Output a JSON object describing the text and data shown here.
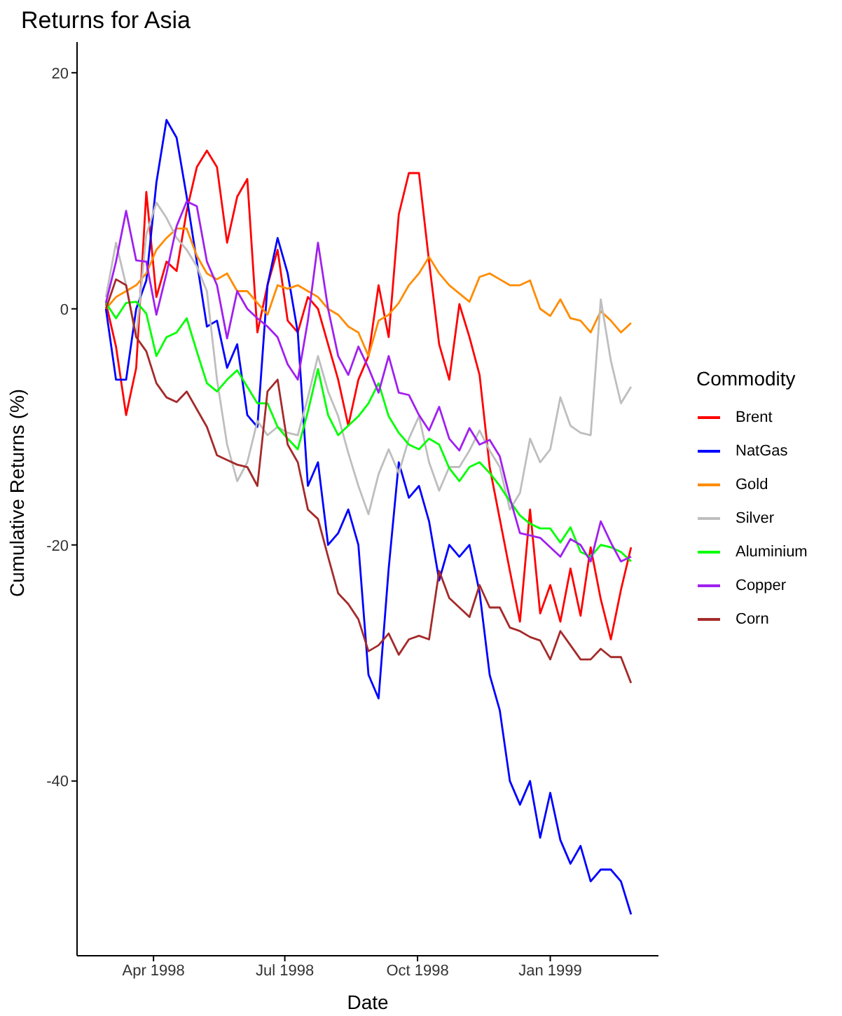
{
  "chart_data": {
    "type": "line",
    "title": "Returns for Asia",
    "xlabel": "Date",
    "ylabel": "Cumulative Returns (%)",
    "legend_title": "Commodity",
    "legend": "right",
    "grid": false,
    "x": [
      "1998-02-27",
      "1998-03-06",
      "1998-03-13",
      "1998-03-20",
      "1998-03-27",
      "1998-04-03",
      "1998-04-10",
      "1998-04-17",
      "1998-04-24",
      "1998-05-01",
      "1998-05-08",
      "1998-05-15",
      "1998-05-22",
      "1998-05-29",
      "1998-06-05",
      "1998-06-12",
      "1998-06-19",
      "1998-06-26",
      "1998-07-03",
      "1998-07-10",
      "1998-07-17",
      "1998-07-24",
      "1998-07-31",
      "1998-08-07",
      "1998-08-14",
      "1998-08-21",
      "1998-08-28",
      "1998-09-04",
      "1998-09-11",
      "1998-09-18",
      "1998-09-25",
      "1998-10-02",
      "1998-10-09",
      "1998-10-16",
      "1998-10-23",
      "1998-10-30",
      "1998-11-06",
      "1998-11-13",
      "1998-11-20",
      "1998-11-27",
      "1998-12-04",
      "1998-12-11",
      "1998-12-18",
      "1998-12-25",
      "1999-01-01",
      "1999-01-08",
      "1999-01-15",
      "1999-01-22",
      "1999-01-29",
      "1999-02-05",
      "1999-02-12",
      "1999-02-19",
      "1999-02-26"
    ],
    "xlim": [
      "1998-02-07",
      "1999-03-17"
    ],
    "xticks": [
      {
        "value": "1998-04-01",
        "label": "Apr 1998"
      },
      {
        "value": "1998-07-01",
        "label": "Jul 1998"
      },
      {
        "value": "1998-10-01",
        "label": "Oct 1998"
      },
      {
        "value": "1999-01-01",
        "label": "Jan 1999"
      }
    ],
    "ylim": [
      -54.8,
      22.6
    ],
    "yticks": [
      -40,
      -20,
      0,
      20
    ],
    "series": [
      {
        "name": "Brent",
        "color": "#ff0000",
        "values": [
          0.5,
          -3.2,
          -9,
          -5,
          9.9,
          1,
          4,
          3.2,
          8.3,
          12,
          13.4,
          12,
          5.6,
          9.5,
          11,
          -2,
          2,
          5,
          -1,
          -2,
          1,
          0,
          -3,
          -6,
          -9.9,
          -6,
          -4,
          2,
          -2.4,
          8,
          11.5,
          11.5,
          4,
          -3,
          -6,
          0.4,
          -2.4,
          -5.6,
          -13.4,
          -17.8,
          -22.2,
          -26.5,
          -17,
          -25.8,
          -23.4,
          -26.5,
          -22,
          -26,
          -20.2,
          -24.6,
          -28,
          -23.8,
          -20.2
        ]
      },
      {
        "name": "NatGas",
        "color": "#0000ff",
        "values": [
          0,
          -6,
          -6,
          0,
          2.4,
          10.7,
          16,
          14.5,
          9.5,
          4,
          -1.5,
          -1,
          -5,
          -3,
          -9,
          -10,
          2,
          6,
          3,
          -2,
          -15,
          -13,
          -20,
          -19,
          -17,
          -20,
          -31,
          -33,
          -22,
          -13,
          -16,
          -15,
          -18,
          -23,
          -20,
          -21,
          -20,
          -24,
          -31,
          -34,
          -40,
          -42,
          -40,
          -44.8,
          -41,
          -45,
          -47,
          -45.5,
          -48.5,
          -47.5,
          -47.5,
          -48.5,
          -51.3
        ]
      },
      {
        "name": "Gold",
        "color": "#ff8c00",
        "values": [
          0,
          1,
          1.5,
          2,
          3,
          5,
          6,
          6.8,
          6.8,
          4.5,
          3,
          2.5,
          3,
          1.5,
          1.5,
          0.5,
          -0.5,
          2,
          1.7,
          2,
          1.5,
          1,
          0,
          -0.5,
          -1.5,
          -2,
          -4,
          -1,
          -0.5,
          0.5,
          2,
          3,
          4.4,
          3,
          2,
          1.3,
          0.6,
          2.7,
          3,
          2.5,
          2,
          2,
          2.4,
          0,
          -0.6,
          0.8,
          -0.8,
          -1,
          -2,
          -0.2,
          -1,
          -2,
          -1.2
        ]
      },
      {
        "name": "Silver",
        "color": "#bebebe",
        "values": [
          1,
          5.6,
          2,
          -2.4,
          6.3,
          9,
          7.7,
          6,
          5,
          3.6,
          1.5,
          -6,
          -11.5,
          -14.6,
          -13,
          -9.5,
          -10.7,
          -10,
          -10.5,
          -10.7,
          -7.5,
          -4,
          -7,
          -9.1,
          -12.2,
          -15,
          -17.4,
          -14,
          -11.9,
          -13.9,
          -11,
          -9.1,
          -13,
          -15.4,
          -13.4,
          -13.4,
          -12,
          -10.3,
          -12,
          -13.4,
          -17,
          -15.6,
          -11,
          -13,
          -11.9,
          -7.5,
          -9.9,
          -10.5,
          -10.7,
          0.8,
          -4.4,
          -8,
          -6.6
        ]
      },
      {
        "name": "Aluminium",
        "color": "#00ff00",
        "values": [
          0.5,
          -0.8,
          0.5,
          0.6,
          -0.4,
          -4,
          -2.4,
          -2,
          -0.8,
          -3.6,
          -6.3,
          -7,
          -6,
          -5.2,
          -6.6,
          -8,
          -8,
          -10,
          -11,
          -11.9,
          -8.7,
          -5.1,
          -9,
          -10.7,
          -9.9,
          -9.1,
          -8,
          -6.3,
          -9.1,
          -10.5,
          -11.5,
          -11.9,
          -11,
          -11.5,
          -13.5,
          -14.6,
          -13.4,
          -13,
          -13.9,
          -15,
          -16.3,
          -17.5,
          -18.2,
          -18.6,
          -18.6,
          -19.8,
          -18.5,
          -20.6,
          -21,
          -20,
          -20.2,
          -20.6,
          -21.4
        ]
      },
      {
        "name": "Copper",
        "color": "#a020f0",
        "values": [
          0.5,
          4,
          8.3,
          4.1,
          4,
          -0.5,
          3,
          7,
          9.1,
          8.7,
          4,
          2,
          -2.5,
          1.5,
          0,
          -0.8,
          -1.5,
          -2.4,
          -4.7,
          -6,
          -1,
          5.6,
          0,
          -4,
          -5.6,
          -3.2,
          -5,
          -7.1,
          -4,
          -7.1,
          -7.3,
          -9,
          -10.3,
          -8.3,
          -11,
          -12,
          -10.1,
          -11.5,
          -11.1,
          -12.5,
          -16,
          -19,
          -19.2,
          -19.4,
          -20.2,
          -21,
          -19.5,
          -20,
          -21.4,
          -18,
          -19.8,
          -21.4,
          -21
        ]
      },
      {
        "name": "Corn",
        "color": "#a52a2a",
        "values": [
          0,
          2.5,
          2,
          -2.4,
          -3.6,
          -6.3,
          -7.5,
          -7.9,
          -7,
          -8.5,
          -10,
          -12.4,
          -12.8,
          -13.2,
          -13.4,
          -15,
          -7,
          -6,
          -11.5,
          -13,
          -17,
          -17.8,
          -21,
          -24.1,
          -25,
          -26.3,
          -29,
          -28.5,
          -27.5,
          -29.3,
          -28,
          -27.7,
          -28,
          -22.2,
          -24.5,
          -25.3,
          -26.1,
          -23.4,
          -25.3,
          -25.3,
          -27,
          -27.3,
          -27.8,
          -28.1,
          -29.7,
          -27.3,
          -28.5,
          -29.7,
          -29.7,
          -28.8,
          -29.5,
          -29.5,
          -31.7
        ]
      }
    ]
  }
}
